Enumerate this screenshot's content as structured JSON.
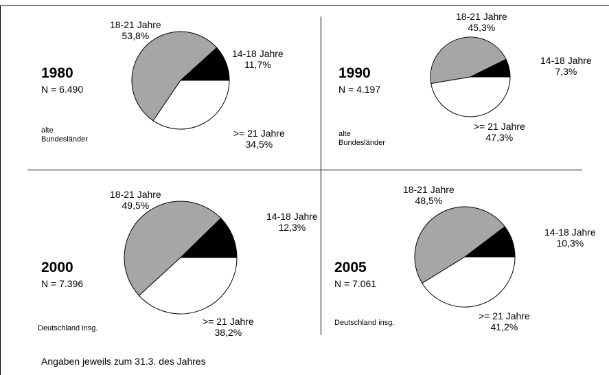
{
  "chart_data": [
    {
      "type": "pie",
      "year": "1980",
      "n": "N = 6.490",
      "region": [
        "alte",
        "Bundesländer"
      ],
      "slices": [
        {
          "name": "14-18 Jahre",
          "value": 11.7,
          "label": "11,7%",
          "color": "#000000"
        },
        {
          "name": ">= 21 Jahre",
          "value": 34.5,
          "label": "34,5%",
          "color": "#ffffff"
        },
        {
          "name": "18-21 Jahre",
          "value": 53.8,
          "label": "53,8%",
          "color": "#a6a6a6"
        }
      ]
    },
    {
      "type": "pie",
      "year": "1990",
      "n": "N = 4.197",
      "region": [
        "alte",
        "Bundesländer"
      ],
      "slices": [
        {
          "name": "14-18 Jahre",
          "value": 7.3,
          "label": "7,3%",
          "color": "#000000"
        },
        {
          "name": ">= 21 Jahre",
          "value": 47.3,
          "label": "47,3%",
          "color": "#ffffff"
        },
        {
          "name": "18-21 Jahre",
          "value": 45.3,
          "label": "45,3%",
          "color": "#a6a6a6"
        }
      ]
    },
    {
      "type": "pie",
      "year": "2000",
      "n": "N = 7.396",
      "region": [
        "Deutschland insg."
      ],
      "slices": [
        {
          "name": "14-18 Jahre",
          "value": 12.3,
          "label": "12,3%",
          "color": "#000000"
        },
        {
          "name": ">= 21 Jahre",
          "value": 38.2,
          "label": "38,2%",
          "color": "#ffffff"
        },
        {
          "name": "18-21 Jahre",
          "value": 49.5,
          "label": "49,5%",
          "color": "#a6a6a6"
        }
      ]
    },
    {
      "type": "pie",
      "year": "2005",
      "n": "N = 7.061",
      "region": [
        "Deutschland insg."
      ],
      "slices": [
        {
          "name": "14-18 Jahre",
          "value": 10.3,
          "label": "10,3%",
          "color": "#000000"
        },
        {
          "name": ">= 21 Jahre",
          "value": 41.2,
          "label": "41,2%",
          "color": "#ffffff"
        },
        {
          "name": "18-21 Jahre",
          "value": 48.5,
          "label": "48,5%",
          "color": "#a6a6a6"
        }
      ]
    }
  ],
  "footnote": "Angaben jeweils zum 31.3. des Jahres"
}
